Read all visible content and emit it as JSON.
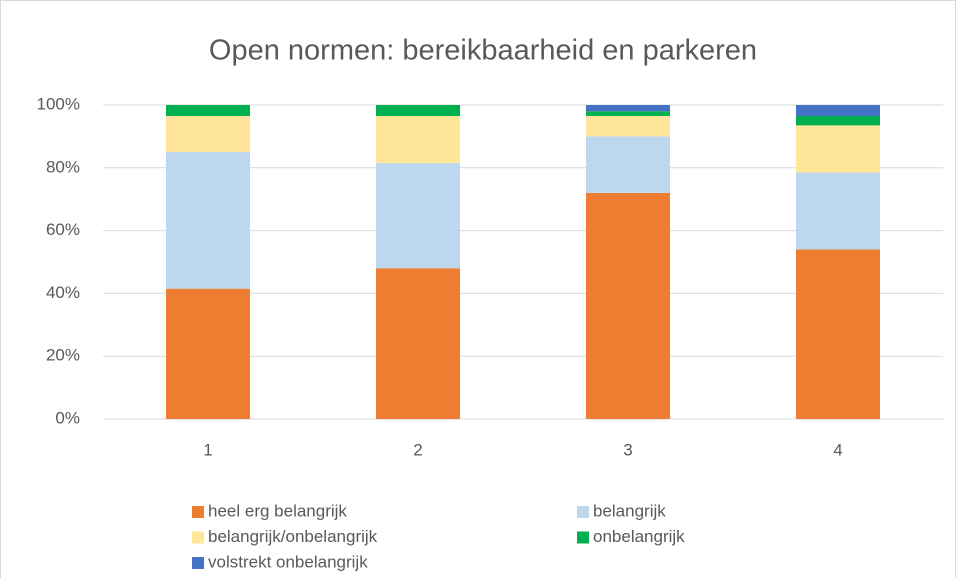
{
  "chart_data": {
    "type": "stacked_bar",
    "title": "Open normen: bereikbaarheid en parkeren",
    "categories": [
      "1",
      "2",
      "3",
      "4"
    ],
    "series": [
      {
        "name": "heel erg belangrijk",
        "color": "#ed7d31",
        "values": [
          41.5,
          48,
          72,
          54
        ]
      },
      {
        "name": "belangrijk",
        "color": "#bdd7ee",
        "values": [
          43.5,
          33.5,
          18,
          24.5
        ]
      },
      {
        "name": "belangrijk/onbelangrijk",
        "color": "#ffe699",
        "values": [
          11.5,
          15,
          6.5,
          15
        ]
      },
      {
        "name": "onbelangrijk",
        "color": "#00b050",
        "values": [
          3.5,
          3.5,
          1.5,
          3
        ]
      },
      {
        "name": "volstrekt onbelangrijk",
        "color": "#4472c4",
        "values": [
          0,
          0,
          2,
          3.5
        ]
      }
    ],
    "ylim": [
      0,
      100
    ],
    "yticks": [
      {
        "value": 0,
        "label": "0%"
      },
      {
        "value": 20,
        "label": "20%"
      },
      {
        "value": 40,
        "label": "40%"
      },
      {
        "value": 60,
        "label": "60%"
      },
      {
        "value": 80,
        "label": "80%"
      },
      {
        "value": 100,
        "label": "100%"
      }
    ],
    "grid": true,
    "legend": "bottom"
  }
}
